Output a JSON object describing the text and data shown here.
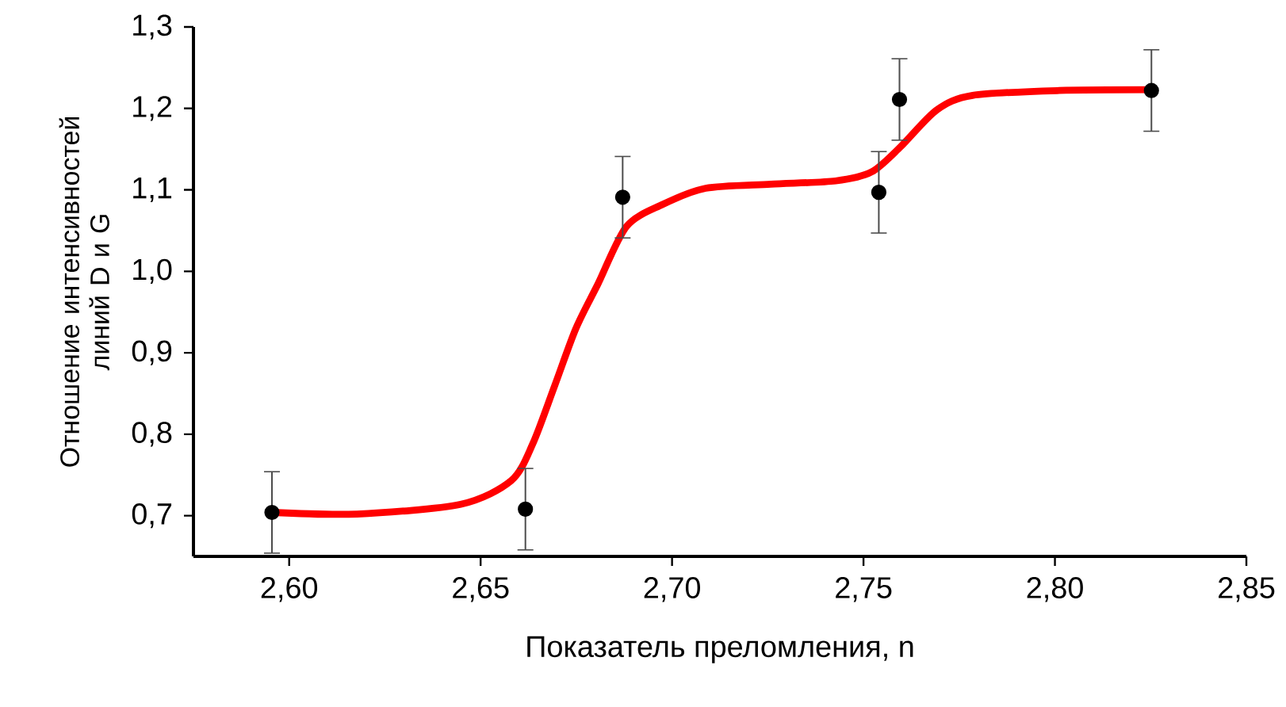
{
  "chart_data": {
    "type": "scatter",
    "xlabel": "Показатель преломления, n",
    "ylabel": "Отношение интенсивностей линий D и G",
    "xlim": [
      2.575,
      2.85
    ],
    "ylim": [
      0.65,
      1.3
    ],
    "xticks": [
      {
        "value": 2.6,
        "label": "2,60"
      },
      {
        "value": 2.65,
        "label": "2,65"
      },
      {
        "value": 2.7,
        "label": "2,70"
      },
      {
        "value": 2.75,
        "label": "2,75"
      },
      {
        "value": 2.8,
        "label": "2,80"
      },
      {
        "value": 2.85,
        "label": "2,85"
      }
    ],
    "yticks": [
      {
        "value": 0.7,
        "label": "0,7"
      },
      {
        "value": 0.8,
        "label": "0,8"
      },
      {
        "value": 0.9,
        "label": "0,9"
      },
      {
        "value": 1.0,
        "label": "1,0"
      },
      {
        "value": 1.1,
        "label": "1,1"
      },
      {
        "value": 1.2,
        "label": "1,2"
      },
      {
        "value": 1.3,
        "label": "1,3"
      }
    ],
    "grid": false,
    "series": [
      {
        "type": "line",
        "marker": "none",
        "color": "#ff0000",
        "x": [
          2.5955,
          2.6177,
          2.6448,
          2.658,
          2.6636,
          2.6693,
          2.6749,
          2.6806,
          2.6881,
          2.6975,
          2.7088,
          2.7258,
          2.7427,
          2.7521,
          2.7597,
          2.7691,
          2.7785,
          2.8011,
          2.8252
        ],
        "values": [
          0.704,
          0.702,
          0.714,
          0.743,
          0.788,
          0.859,
          0.93,
          0.984,
          1.055,
          1.082,
          1.102,
          1.107,
          1.111,
          1.122,
          1.153,
          1.198,
          1.216,
          1.222,
          1.223
        ]
      },
      {
        "marker": "circle",
        "color": "#000000",
        "x": [
          2.5955,
          2.6617,
          2.6871,
          2.754,
          2.7594,
          2.8252
        ],
        "values": [
          0.704,
          0.708,
          1.091,
          1.097,
          1.211,
          1.222
        ],
        "errors": [
          0.05,
          0.05,
          0.05,
          0.05,
          0.05,
          0.05
        ]
      }
    ]
  }
}
